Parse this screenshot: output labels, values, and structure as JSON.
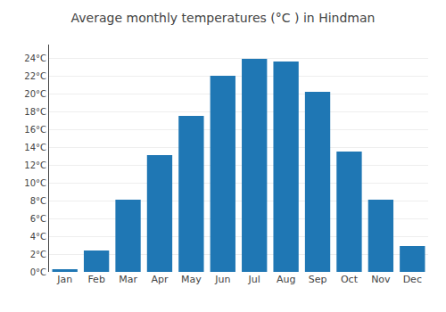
{
  "chart_data": {
    "type": "bar",
    "title": "Average monthly temperatures (°C ) in Hindman",
    "categories": [
      "Jan",
      "Feb",
      "Mar",
      "Apr",
      "May",
      "Jun",
      "Jul",
      "Aug",
      "Sep",
      "Oct",
      "Nov",
      "Dec"
    ],
    "values": [
      0.3,
      2.4,
      8.1,
      13.1,
      17.5,
      22.0,
      23.9,
      23.6,
      20.2,
      13.5,
      8.1,
      2.9
    ],
    "ylim": [
      0,
      25.5
    ],
    "yticks": [
      {
        "value": 0,
        "label": "0°C"
      },
      {
        "value": 2,
        "label": "2°C"
      },
      {
        "value": 4,
        "label": "4°C"
      },
      {
        "value": 6,
        "label": "6°C"
      },
      {
        "value": 8,
        "label": "8°C"
      },
      {
        "value": 10,
        "label": "10°C"
      },
      {
        "value": 12,
        "label": "12°C"
      },
      {
        "value": 14,
        "label": "14°C"
      },
      {
        "value": 16,
        "label": "16°C"
      },
      {
        "value": 18,
        "label": "18°C"
      },
      {
        "value": 20,
        "label": "20°C"
      },
      {
        "value": 22,
        "label": "22°C"
      },
      {
        "value": 24,
        "label": "24°C"
      }
    ],
    "grid": true
  }
}
